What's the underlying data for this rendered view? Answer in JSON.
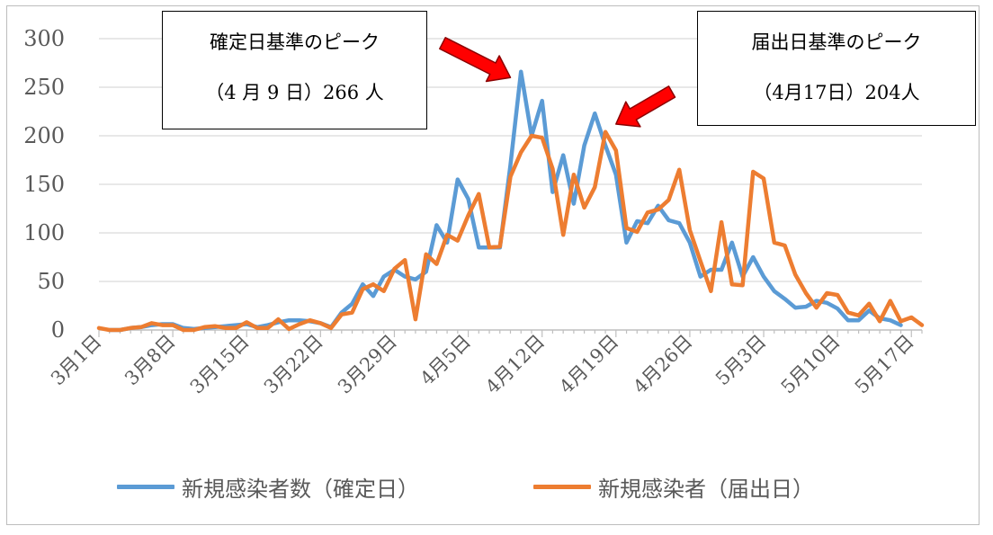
{
  "chart_data": {
    "type": "line",
    "title": "",
    "xlabel": "",
    "ylabel": "",
    "ylim": [
      0,
      300
    ],
    "yticks": [
      0,
      50,
      100,
      150,
      200,
      250,
      300
    ],
    "grid": true,
    "legend_position": "bottom",
    "x_tick_labels": [
      "3月1日",
      "3月8日",
      "3月15日",
      "3月22日",
      "3月29日",
      "4月5日",
      "4月12日",
      "4月19日",
      "4月26日",
      "5月3日",
      "5月10日",
      "5月17日"
    ],
    "x_start": "3月1日",
    "x_end": "5月18日",
    "series": [
      {
        "name": "新規感染者数（確定日）",
        "color": "#5b9bd5",
        "values": [
          0,
          0,
          2,
          3,
          5,
          6,
          6,
          2,
          1,
          2,
          3,
          4,
          5,
          6,
          3,
          5,
          8,
          10,
          10,
          9,
          7,
          3,
          18,
          27,
          47,
          35,
          55,
          62,
          55,
          52,
          60,
          108,
          90,
          155,
          135,
          85,
          85,
          85,
          170,
          266,
          200,
          236,
          142,
          180,
          130,
          190,
          223,
          190,
          160,
          90,
          112,
          110,
          128,
          113,
          110,
          90,
          55,
          62,
          62,
          90,
          55,
          75,
          55,
          40,
          32,
          23,
          24,
          30,
          28,
          22,
          10,
          10,
          20,
          12,
          10,
          5
        ],
        "offset": 1
      },
      {
        "name": "新規感染者（届出日）",
        "color": "#ed7d31",
        "values": [
          2,
          0,
          0,
          2,
          3,
          7,
          5,
          5,
          0,
          0,
          3,
          4,
          2,
          2,
          8,
          2,
          2,
          11,
          1,
          6,
          10,
          7,
          2,
          16,
          18,
          42,
          47,
          40,
          63,
          72,
          11,
          78,
          68,
          98,
          92,
          118,
          140,
          85,
          86,
          158,
          183,
          200,
          198,
          166,
          98,
          160,
          126,
          147,
          204,
          185,
          105,
          101,
          121,
          124,
          134,
          165,
          103,
          71,
          40,
          111,
          47,
          46,
          163,
          156,
          90,
          87,
          57,
          38,
          23,
          38,
          36,
          18,
          15,
          27,
          9,
          30,
          9,
          13,
          5
        ]
      }
    ]
  },
  "annotations": {
    "left": {
      "line1": "確定日基準のピーク",
      "line2": "（4 月 9 日）266 人"
    },
    "right": {
      "line1": "届出日基準のピーク",
      "line2": "（4月17日）204人"
    }
  },
  "arrows": [
    {
      "name": "arrow-to-confirmed-peak",
      "color": "#ff0000",
      "stroke": "#8b0000",
      "points_to_day": 39,
      "points_to_value": 260
    },
    {
      "name": "arrow-to-reported-peak",
      "color": "#ff0000",
      "stroke": "#8b0000",
      "points_to_day": 49,
      "points_to_value": 212
    }
  ]
}
